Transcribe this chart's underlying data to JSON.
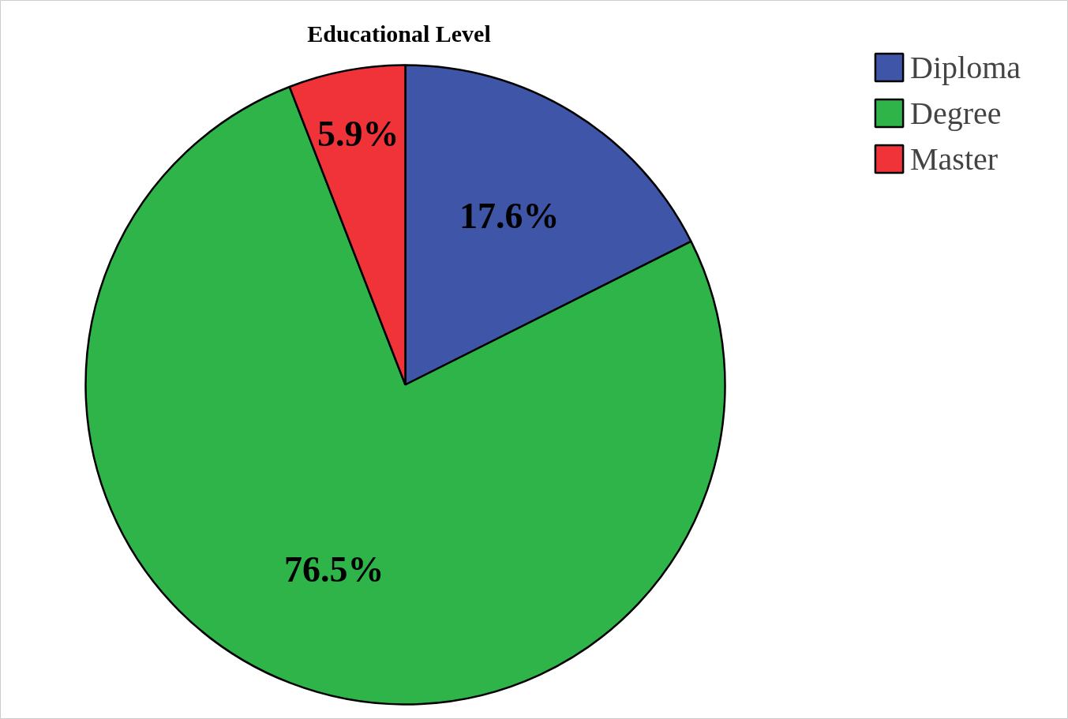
{
  "chart_data": {
    "type": "pie",
    "title": "Educational Level",
    "categories": [
      "Diploma",
      "Degree",
      "Master"
    ],
    "values": [
      17.6,
      76.5,
      5.9
    ],
    "colors": [
      "#3f56a8",
      "#2fb44a",
      "#ef3339"
    ],
    "data_labels": true,
    "value_labels": [
      "17.6%",
      "76.5%",
      "5.9%"
    ],
    "legend": "top right"
  }
}
